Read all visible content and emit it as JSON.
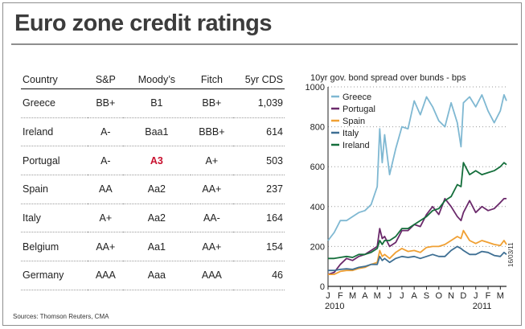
{
  "title": "Euro zone credit ratings",
  "table": {
    "headers": [
      "Country",
      "S&P",
      "Moody’s",
      "Fitch",
      "5yr CDS"
    ],
    "rows": [
      [
        "Greece",
        "BB+",
        "B1",
        "BB+",
        "1,039"
      ],
      [
        "Ireland",
        "A-",
        "Baa1",
        "BBB+",
        "614"
      ],
      [
        "Portugal",
        "A-",
        "A3",
        "A+",
        "503"
      ],
      [
        "Spain",
        "AA",
        "Aa2",
        "AA+",
        "237"
      ],
      [
        "Italy",
        "A+",
        "Aa2",
        "AA-",
        "164"
      ],
      [
        "Belgium",
        "AA+",
        "Aa1",
        "AA+",
        "154"
      ],
      [
        "Germany",
        "AAA",
        "Aaa",
        "AAA",
        "46"
      ]
    ],
    "highlight_color": "#c8102e"
  },
  "source": "Sources: Thomson Reuters, CMA",
  "date_stamp": "16/03/11",
  "chart_data": {
    "type": "line",
    "title": "10yr gov. bond spread over bunds - bps",
    "ylim": [
      0,
      1000
    ],
    "yticks": [
      0,
      200,
      400,
      600,
      800,
      1000
    ],
    "grid": true,
    "legend_position": "top-left",
    "month_labels": [
      "J",
      "F",
      "M",
      "A",
      "M",
      "J",
      "J",
      "A",
      "S",
      "O",
      "N",
      "D",
      "J",
      "F",
      "M"
    ],
    "year_labels": [
      {
        "label": "2010",
        "month_index": 0
      },
      {
        "label": "2011",
        "month_index": 12
      }
    ],
    "x": [
      0,
      0.5,
      1,
      1.5,
      2,
      2.5,
      3,
      3.5,
      4,
      4.2,
      4.4,
      4.6,
      5,
      5.5,
      6,
      6.5,
      7,
      7.5,
      8,
      8.5,
      9,
      9.5,
      10,
      10.5,
      10.8,
      11,
      11.5,
      12,
      12.5,
      13,
      13.5,
      14,
      14.3,
      14.5
    ],
    "series": [
      {
        "name": "Greece",
        "color": "#7fb8d2",
        "values": [
          230,
          270,
          330,
          330,
          350,
          370,
          380,
          410,
          500,
          790,
          620,
          760,
          560,
          690,
          800,
          790,
          930,
          860,
          950,
          900,
          830,
          800,
          920,
          820,
          700,
          920,
          950,
          900,
          960,
          880,
          820,
          880,
          960,
          930
        ]
      },
      {
        "name": "Portugal",
        "color": "#6b2a6b",
        "values": [
          60,
          70,
          110,
          140,
          130,
          150,
          160,
          180,
          200,
          290,
          240,
          250,
          200,
          220,
          280,
          280,
          310,
          300,
          360,
          400,
          360,
          440,
          400,
          350,
          330,
          370,
          430,
          370,
          400,
          380,
          390,
          420,
          440,
          440
        ]
      },
      {
        "name": "Spain",
        "color": "#f0a033",
        "values": [
          60,
          60,
          75,
          80,
          80,
          90,
          95,
          110,
          120,
          180,
          150,
          160,
          140,
          170,
          190,
          175,
          180,
          170,
          195,
          200,
          200,
          210,
          230,
          250,
          240,
          280,
          230,
          215,
          230,
          220,
          210,
          205,
          230,
          210
        ]
      },
      {
        "name": "Italy",
        "color": "#3e6f93",
        "values": [
          80,
          80,
          85,
          88,
          85,
          95,
          100,
          110,
          110,
          150,
          130,
          140,
          120,
          140,
          150,
          145,
          150,
          140,
          150,
          160,
          150,
          150,
          180,
          200,
          190,
          180,
          160,
          160,
          175,
          170,
          155,
          150,
          170,
          160
        ]
      },
      {
        "name": "Ireland",
        "color": "#146e3b",
        "values": [
          140,
          140,
          145,
          150,
          145,
          160,
          160,
          170,
          190,
          230,
          210,
          230,
          230,
          250,
          290,
          290,
          310,
          330,
          350,
          380,
          390,
          430,
          450,
          510,
          500,
          620,
          560,
          580,
          560,
          570,
          580,
          600,
          620,
          610
        ]
      }
    ]
  }
}
